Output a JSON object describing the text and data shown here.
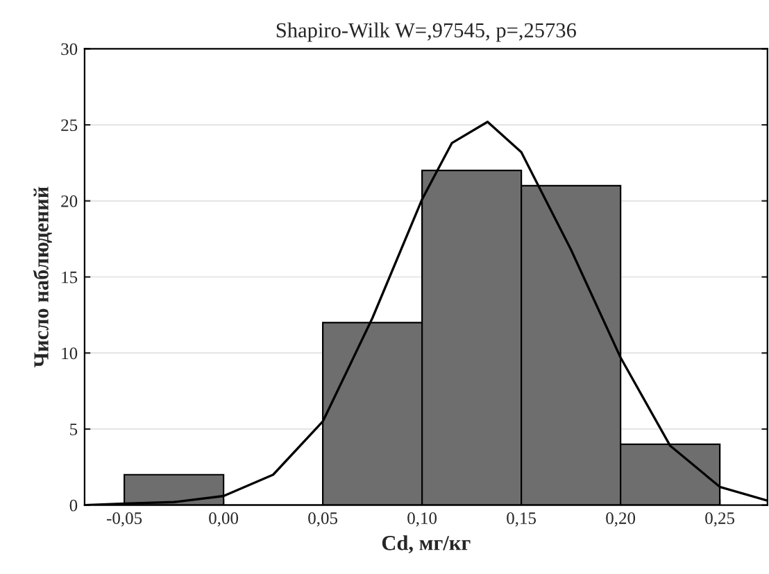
{
  "chart_data": {
    "type": "histogram",
    "title": "Shapiro-Wilk W=,97545, p=,25736",
    "xlabel": "Cd, мг/кг",
    "ylabel": "Число наблюдений",
    "bins": [
      -0.05,
      0.0,
      0.05,
      0.1,
      0.15,
      0.2,
      0.25
    ],
    "values": [
      2,
      0,
      12,
      22,
      21,
      4
    ],
    "color": "#6e6e6e",
    "series": [
      {
        "type": "line",
        "color": "#000000",
        "x": [
          -0.07,
          -0.05,
          -0.025,
          0.0,
          0.025,
          0.05,
          0.075,
          0.1,
          0.115,
          0.133,
          0.15,
          0.175,
          0.2,
          0.225,
          0.25,
          0.274
        ],
        "values": [
          0.0,
          0.1,
          0.2,
          0.6,
          2.0,
          5.5,
          12.3,
          20.1,
          23.8,
          25.2,
          23.2,
          16.8,
          9.7,
          3.9,
          1.2,
          0.3
        ]
      }
    ],
    "xlim": [
      -0.07,
      0.274
    ],
    "ylim": [
      0,
      30
    ],
    "xticks": [
      {
        "value": -0.05,
        "label": "-0,05"
      },
      {
        "value": 0.0,
        "label": "0,00"
      },
      {
        "value": 0.05,
        "label": "0,05"
      },
      {
        "value": 0.1,
        "label": "0,10"
      },
      {
        "value": 0.15,
        "label": "0,15"
      },
      {
        "value": 0.2,
        "label": "0,20"
      },
      {
        "value": 0.25,
        "label": "0,25"
      }
    ],
    "yticks": [
      0,
      5,
      10,
      15,
      20,
      25,
      30
    ],
    "grid": "y",
    "legend": false
  }
}
